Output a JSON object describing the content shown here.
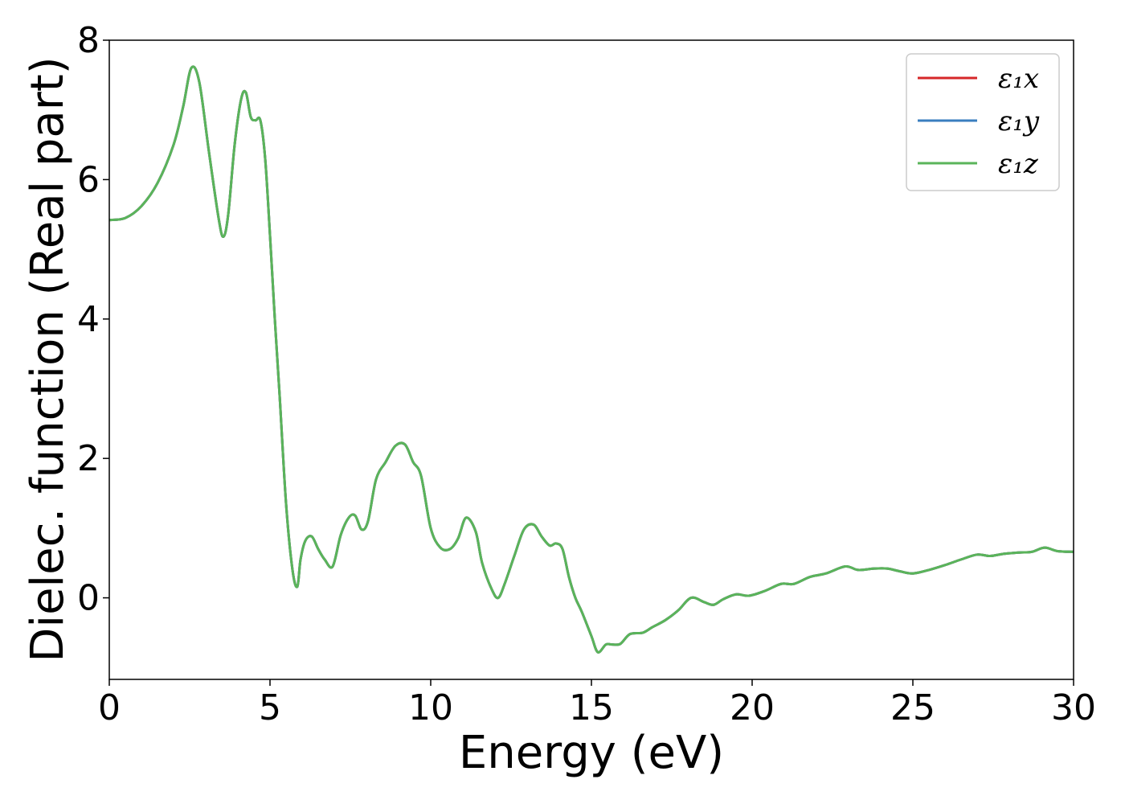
{
  "chart_data": {
    "type": "line",
    "xlabel": "Energy (eV)",
    "ylabel": "Dielec. function (Real part)",
    "xlim": [
      0,
      30
    ],
    "ylim": [
      -1.17,
      8
    ],
    "xticks": [
      0,
      5,
      10,
      15,
      20,
      25,
      30
    ],
    "yticks": [
      0,
      2,
      4,
      6,
      8
    ],
    "grid": false,
    "legend_position": "top-right",
    "series": [
      {
        "name": "ε₁x",
        "color": "#d62728"
      },
      {
        "name": "ε₁y",
        "color": "#3a7ebf"
      },
      {
        "name": "ε₁z",
        "color": "#5ab45a"
      }
    ],
    "shared_curve": {
      "x": [
        0,
        0.5,
        1,
        1.5,
        2,
        2.3,
        2.55,
        2.8,
        3.1,
        3.4,
        3.55,
        3.7,
        3.9,
        4.1,
        4.25,
        4.4,
        4.55,
        4.7,
        4.85,
        5,
        5.15,
        5.3,
        5.5,
        5.7,
        5.85,
        5.95,
        6.1,
        6.3,
        6.5,
        6.7,
        6.95,
        7.2,
        7.45,
        7.65,
        7.85,
        8.05,
        8.3,
        8.6,
        8.9,
        9.2,
        9.45,
        9.7,
        10,
        10.3,
        10.6,
        10.85,
        11.1,
        11.4,
        11.6,
        11.9,
        12.1,
        12.3,
        12.6,
        12.9,
        13.2,
        13.45,
        13.7,
        13.9,
        14.1,
        14.3,
        14.5,
        14.7,
        15,
        15.2,
        15.45,
        15.65,
        15.9,
        16.2,
        16.6,
        16.9,
        17.3,
        17.7,
        18.1,
        18.5,
        18.8,
        19.1,
        19.5,
        19.9,
        20.4,
        20.9,
        21.3,
        21.8,
        22.3,
        22.9,
        23.3,
        23.8,
        24.2,
        24.6,
        25,
        25.5,
        26,
        26.5,
        27,
        27.4,
        27.8,
        28.3,
        28.7,
        29.1,
        29.5,
        30
      ],
      "y": [
        5.42,
        5.45,
        5.62,
        5.95,
        6.5,
        7.05,
        7.6,
        7.4,
        6.4,
        5.45,
        5.18,
        5.5,
        6.5,
        7.15,
        7.25,
        6.9,
        6.85,
        6.85,
        6.3,
        5.2,
        4.0,
        2.9,
        1.35,
        0.4,
        0.16,
        0.55,
        0.82,
        0.88,
        0.7,
        0.55,
        0.45,
        0.9,
        1.15,
        1.18,
        0.98,
        1.1,
        1.7,
        1.95,
        2.18,
        2.2,
        1.95,
        1.75,
        1.0,
        0.72,
        0.7,
        0.85,
        1.15,
        0.95,
        0.5,
        0.12,
        0.0,
        0.2,
        0.6,
        0.98,
        1.05,
        0.88,
        0.75,
        0.78,
        0.7,
        0.3,
        0.0,
        -0.2,
        -0.55,
        -0.78,
        -0.67,
        -0.67,
        -0.66,
        -0.52,
        -0.5,
        -0.42,
        -0.32,
        -0.18,
        0.0,
        -0.06,
        -0.1,
        -0.02,
        0.05,
        0.03,
        0.1,
        0.2,
        0.2,
        0.3,
        0.35,
        0.45,
        0.4,
        0.42,
        0.42,
        0.38,
        0.35,
        0.4,
        0.47,
        0.55,
        0.62,
        0.6,
        0.63,
        0.65,
        0.66,
        0.72,
        0.67,
        0.66
      ]
    }
  }
}
